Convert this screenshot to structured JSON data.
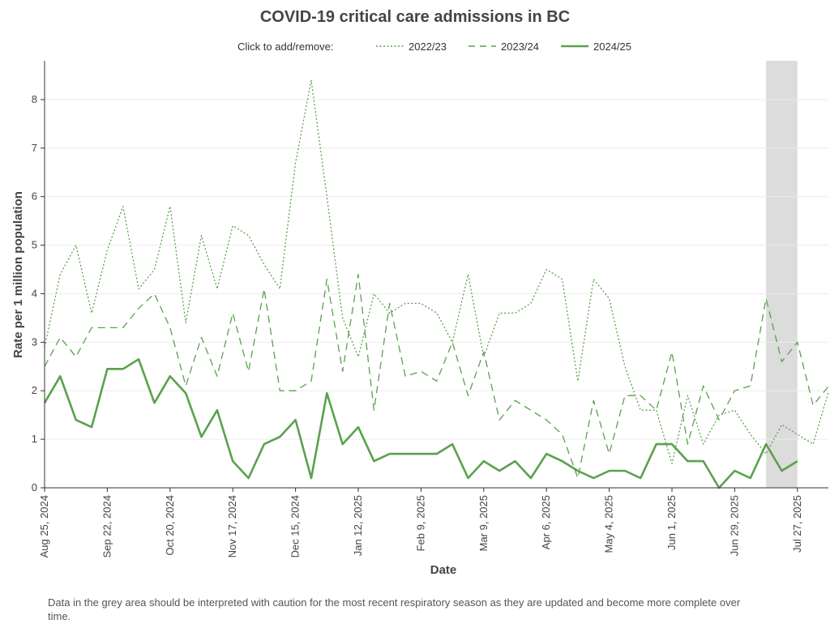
{
  "chart_data": {
    "type": "line",
    "title": "COVID-19 critical care admissions in BC",
    "xlabel": "Date",
    "ylabel": "Rate per 1 million population",
    "ylim": [
      0,
      8.8
    ],
    "yticks": [
      0,
      1,
      2,
      3,
      4,
      5,
      6,
      7,
      8
    ],
    "x_ticks": [
      "Aug 25, 2024",
      "Sep 22, 2024",
      "Oct 20, 2024",
      "Nov 17, 2024",
      "Dec 15, 2024",
      "Jan 12, 2025",
      "Feb 9, 2025",
      "Mar 9, 2025",
      "Apr 6, 2025",
      "May 4, 2025",
      "Jun 1, 2025",
      "Jun 29, 2025",
      "Jul 27, 2025"
    ],
    "week_start": "Aug 25, 2024",
    "week_count": 51,
    "grid": true,
    "legend_position": "top",
    "legend_prompt": "Click to add/remove:",
    "caution_region": {
      "start_week": 46,
      "end_week": 48
    },
    "series": [
      {
        "name": "2022/23",
        "style": "dotted",
        "color": "#5aa14d",
        "values": [
          2.9,
          4.4,
          5.0,
          3.6,
          4.9,
          5.8,
          4.1,
          4.5,
          5.8,
          3.4,
          5.2,
          4.1,
          5.4,
          5.2,
          4.6,
          4.1,
          6.7,
          8.4,
          6.0,
          3.5,
          2.7,
          4.0,
          3.6,
          3.8,
          3.8,
          3.6,
          3.0,
          4.4,
          2.7,
          3.6,
          3.6,
          3.8,
          4.5,
          4.3,
          2.2,
          4.3,
          3.9,
          2.5,
          1.6,
          1.6,
          0.5,
          1.9,
          0.9,
          1.5,
          1.6,
          1.1,
          0.7,
          1.3,
          1.1,
          0.9,
          2.0
        ]
      },
      {
        "name": "2023/24",
        "style": "dashed",
        "color": "#5aa14d",
        "values": [
          2.5,
          3.1,
          2.7,
          3.3,
          3.3,
          3.3,
          3.7,
          4.0,
          3.3,
          2.1,
          3.1,
          2.3,
          3.6,
          2.4,
          4.1,
          2.0,
          2.0,
          2.2,
          4.3,
          2.4,
          4.4,
          1.6,
          3.8,
          2.3,
          2.4,
          2.2,
          3.0,
          1.9,
          2.8,
          1.4,
          1.8,
          1.6,
          1.4,
          1.1,
          0.2,
          1.8,
          0.7,
          1.9,
          1.9,
          1.6,
          2.8,
          0.9,
          2.1,
          1.4,
          2.0,
          2.1,
          3.9,
          2.6,
          3.0,
          1.7,
          2.1
        ]
      },
      {
        "name": "2024/25",
        "style": "solid",
        "color": "#5aa14d",
        "values": [
          1.75,
          2.3,
          1.4,
          1.25,
          2.45,
          2.45,
          2.65,
          1.75,
          2.3,
          1.95,
          1.05,
          1.6,
          0.55,
          0.2,
          0.9,
          1.05,
          1.4,
          0.2,
          1.95,
          0.9,
          1.25,
          0.55,
          0.7,
          0.7,
          0.7,
          0.7,
          0.9,
          0.2,
          0.55,
          0.35,
          0.55,
          0.2,
          0.7,
          0.55,
          0.35,
          0.2,
          0.35,
          0.35,
          0.2,
          0.9,
          0.9,
          0.55,
          0.55,
          0.0,
          0.35,
          0.2,
          0.9,
          0.35,
          0.55
        ]
      }
    ]
  },
  "footnote": "Data in the grey area should be interpreted with caution for the most recent respiratory season as they are updated and become more complete over time."
}
